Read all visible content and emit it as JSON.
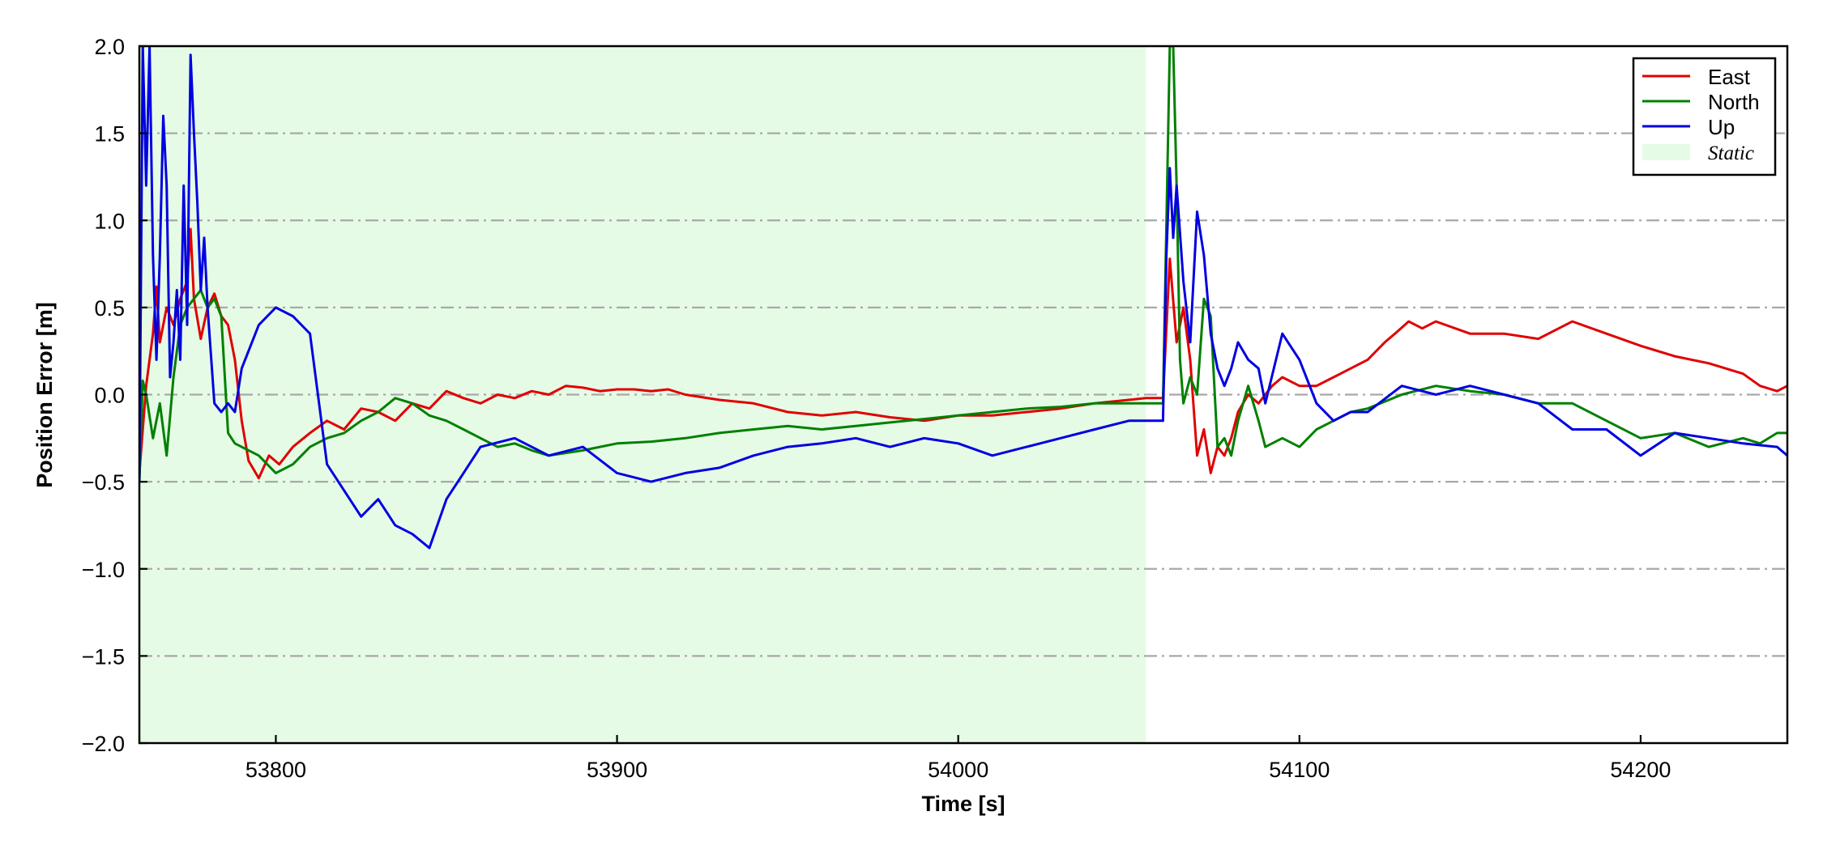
{
  "chart_data": {
    "type": "line",
    "title": "",
    "xlabel": "Time [s]",
    "ylabel": "Position Error [m]",
    "xlim": [
      53760,
      54243
    ],
    "ylim": [
      -2.0,
      2.0
    ],
    "x_ticks": [
      53800,
      53900,
      54000,
      54100,
      54200
    ],
    "x_tick_labels": [
      "53800",
      "53900",
      "54000",
      "54100",
      "54200"
    ],
    "y_ticks": [
      -2.0,
      -1.5,
      -1.0,
      -0.5,
      0.0,
      0.5,
      1.0,
      1.5,
      2.0
    ],
    "y_tick_labels": [
      "−2.0",
      "−1.5",
      "−1.0",
      "−0.5",
      "0.0",
      "0.5",
      "1.0",
      "1.5",
      "2.0"
    ],
    "grid": "horizontal dash-dot",
    "legend_position": "top-right",
    "static_region": {
      "label": "Static",
      "x_start": 53760,
      "x_end": 54055,
      "color": "#e6fbe6"
    },
    "series": [
      {
        "name": "East",
        "color": "#e00000",
        "x": [
          53760,
          53762,
          53764,
          53765,
          53766,
          53768,
          53770,
          53772,
          53774,
          53775,
          53776,
          53778,
          53780,
          53782,
          53784,
          53786,
          53788,
          53790,
          53792,
          53795,
          53798,
          53801,
          53805,
          53810,
          53815,
          53820,
          53825,
          53830,
          53835,
          53840,
          53845,
          53850,
          53855,
          53860,
          53865,
          53870,
          53875,
          53880,
          53885,
          53890,
          53895,
          53900,
          53905,
          53910,
          53915,
          53920,
          53930,
          53940,
          53950,
          53960,
          53970,
          53980,
          53990,
          54000,
          54010,
          54020,
          54030,
          54040,
          54050,
          54055,
          54060,
          54062,
          54064,
          54066,
          54068,
          54070,
          54072,
          54074,
          54076,
          54078,
          54080,
          54082,
          54085,
          54088,
          54092,
          54095,
          54100,
          54105,
          54110,
          54115,
          54120,
          54125,
          54128,
          54132,
          54136,
          54140,
          54150,
          54160,
          54170,
          54180,
          54190,
          54200,
          54210,
          54220,
          54230,
          54235,
          54240,
          54243
        ],
        "values": [
          -0.45,
          0.05,
          0.35,
          0.62,
          0.3,
          0.5,
          0.4,
          0.55,
          0.65,
          0.95,
          0.55,
          0.32,
          0.5,
          0.58,
          0.45,
          0.4,
          0.2,
          -0.15,
          -0.38,
          -0.48,
          -0.35,
          -0.4,
          -0.3,
          -0.22,
          -0.15,
          -0.2,
          -0.08,
          -0.1,
          -0.15,
          -0.05,
          -0.08,
          0.02,
          -0.02,
          -0.05,
          0.0,
          -0.02,
          0.02,
          0.0,
          0.05,
          0.04,
          0.02,
          0.03,
          0.03,
          0.02,
          0.03,
          0.0,
          -0.03,
          -0.05,
          -0.1,
          -0.12,
          -0.1,
          -0.13,
          -0.15,
          -0.12,
          -0.12,
          -0.1,
          -0.08,
          -0.05,
          -0.03,
          -0.02,
          -0.02,
          0.78,
          0.3,
          0.5,
          0.2,
          -0.35,
          -0.2,
          -0.45,
          -0.3,
          -0.35,
          -0.25,
          -0.1,
          0.0,
          -0.05,
          0.05,
          0.1,
          0.05,
          0.05,
          0.1,
          0.15,
          0.2,
          0.3,
          0.35,
          0.42,
          0.38,
          0.42,
          0.35,
          0.35,
          0.32,
          0.42,
          0.35,
          0.28,
          0.22,
          0.18,
          0.12,
          0.05,
          0.02,
          0.05
        ]
      },
      {
        "name": "North",
        "color": "#008000",
        "x": [
          53760,
          53761,
          53762,
          53764,
          53766,
          53768,
          53770,
          53772,
          53774,
          53776,
          53778,
          53780,
          53782,
          53784,
          53786,
          53788,
          53790,
          53795,
          53800,
          53805,
          53810,
          53815,
          53820,
          53825,
          53830,
          53835,
          53840,
          53845,
          53850,
          53855,
          53860,
          53865,
          53870,
          53875,
          53880,
          53890,
          53900,
          53910,
          53920,
          53930,
          53940,
          53950,
          53960,
          53970,
          53980,
          53990,
          54000,
          54010,
          54020,
          54030,
          54040,
          54050,
          54055,
          54060,
          54062,
          54063,
          54064,
          54065,
          54066,
          54068,
          54070,
          54072,
          54074,
          54076,
          54078,
          54080,
          54082,
          54085,
          54088,
          54090,
          54095,
          54100,
          54105,
          54110,
          54115,
          54120,
          54130,
          54140,
          54150,
          54160,
          54170,
          54180,
          54190,
          54200,
          54210,
          54220,
          54230,
          54235,
          54240,
          54243
        ],
        "values": [
          -0.5,
          0.08,
          0.0,
          -0.25,
          -0.05,
          -0.35,
          0.1,
          0.4,
          0.5,
          0.55,
          0.6,
          0.5,
          0.55,
          0.45,
          -0.22,
          -0.28,
          -0.3,
          -0.35,
          -0.45,
          -0.4,
          -0.3,
          -0.25,
          -0.22,
          -0.15,
          -0.1,
          -0.02,
          -0.05,
          -0.12,
          -0.15,
          -0.2,
          -0.25,
          -0.3,
          -0.28,
          -0.32,
          -0.35,
          -0.32,
          -0.28,
          -0.27,
          -0.25,
          -0.22,
          -0.2,
          -0.18,
          -0.2,
          -0.18,
          -0.16,
          -0.14,
          -0.12,
          -0.1,
          -0.08,
          -0.07,
          -0.05,
          -0.05,
          -0.05,
          -0.05,
          2.0,
          2.0,
          1.2,
          0.2,
          -0.05,
          0.1,
          0.0,
          0.55,
          0.45,
          -0.3,
          -0.25,
          -0.35,
          -0.15,
          0.05,
          -0.15,
          -0.3,
          -0.25,
          -0.3,
          -0.2,
          -0.15,
          -0.1,
          -0.08,
          0.0,
          0.05,
          0.02,
          0.0,
          -0.05,
          -0.05,
          -0.15,
          -0.25,
          -0.22,
          -0.3,
          -0.25,
          -0.28,
          -0.22,
          -0.22
        ]
      },
      {
        "name": "Up",
        "color": "#0000e0",
        "x": [
          53760,
          53761,
          53762,
          53763,
          53764,
          53765,
          53766,
          53767,
          53768,
          53769,
          53770,
          53771,
          53772,
          53773,
          53774,
          53775,
          53776,
          53777,
          53778,
          53779,
          53780,
          53782,
          53784,
          53786,
          53788,
          53790,
          53795,
          53800,
          53805,
          53810,
          53815,
          53820,
          53825,
          53830,
          53835,
          53840,
          53845,
          53850,
          53855,
          53860,
          53870,
          53880,
          53890,
          53900,
          53910,
          53920,
          53930,
          53940,
          53950,
          53960,
          53970,
          53980,
          53990,
          54000,
          54010,
          54020,
          54030,
          54040,
          54050,
          54055,
          54060,
          54061,
          54062,
          54063,
          54064,
          54066,
          54068,
          54070,
          54072,
          54074,
          54076,
          54078,
          54080,
          54082,
          54085,
          54088,
          54090,
          54095,
          54100,
          54105,
          54110,
          54115,
          54120,
          54130,
          54140,
          54150,
          54160,
          54170,
          54180,
          54190,
          54200,
          54210,
          54220,
          54230,
          54240,
          54243
        ],
        "values": [
          -0.5,
          2.0,
          1.2,
          2.0,
          0.8,
          0.2,
          0.8,
          1.6,
          1.2,
          0.1,
          0.3,
          0.6,
          0.2,
          1.2,
          0.4,
          1.95,
          1.5,
          1.1,
          0.6,
          0.9,
          0.5,
          -0.05,
          -0.1,
          -0.05,
          -0.1,
          0.15,
          0.4,
          0.5,
          0.45,
          0.35,
          -0.4,
          -0.55,
          -0.7,
          -0.6,
          -0.75,
          -0.8,
          -0.88,
          -0.6,
          -0.45,
          -0.3,
          -0.25,
          -0.35,
          -0.3,
          -0.45,
          -0.5,
          -0.45,
          -0.42,
          -0.35,
          -0.3,
          -0.28,
          -0.25,
          -0.3,
          -0.25,
          -0.28,
          -0.35,
          -0.3,
          -0.25,
          -0.2,
          -0.15,
          -0.15,
          -0.15,
          0.8,
          1.3,
          0.9,
          1.2,
          0.65,
          0.3,
          1.05,
          0.8,
          0.35,
          0.15,
          0.05,
          0.15,
          0.3,
          0.2,
          0.15,
          -0.05,
          0.35,
          0.2,
          -0.05,
          -0.15,
          -0.1,
          -0.1,
          0.05,
          0.0,
          0.05,
          0.0,
          -0.05,
          -0.2,
          -0.2,
          -0.35,
          -0.22,
          -0.25,
          -0.28,
          -0.3,
          -0.35
        ]
      }
    ]
  }
}
